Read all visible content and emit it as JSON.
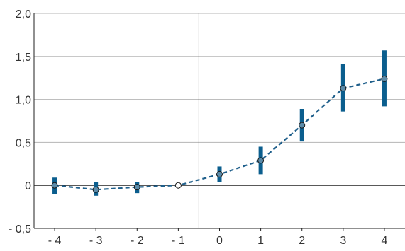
{
  "chart_data": {
    "type": "line",
    "title": "",
    "xlabel": "",
    "ylabel": "",
    "x_ticks": [
      "- 4",
      "- 3",
      "- 2",
      "- 1",
      "0",
      "1",
      "2",
      "3",
      "4"
    ],
    "x": [
      -4,
      -3,
      -2,
      -1,
      0,
      1,
      2,
      3,
      4
    ],
    "y_ticks": [
      "2,0",
      "1,5",
      "1,0",
      "0,5",
      "0",
      "- 0,5"
    ],
    "y_tick_values": [
      2.0,
      1.5,
      1.0,
      0.5,
      0,
      -0.5
    ],
    "ylim": [
      -0.5,
      2.0
    ],
    "grid": "horizontal",
    "reference_line_x": -0.5,
    "series": [
      {
        "values": [
          0.0,
          -0.05,
          -0.02,
          0.0,
          0.13,
          0.29,
          0.7,
          1.13,
          1.24
        ],
        "ci_low": [
          -0.1,
          -0.12,
          -0.09,
          0.0,
          0.04,
          0.13,
          0.51,
          0.86,
          0.92
        ],
        "ci_high": [
          0.09,
          0.04,
          0.04,
          0.0,
          0.22,
          0.45,
          0.89,
          1.41,
          1.57
        ]
      }
    ],
    "colors": {
      "line": "#1f5f8b",
      "error_bar": "#0b5e8e",
      "marker_fill": "#5b8ba9",
      "marker_stroke": "#1a1a1a",
      "grid": "#b5b5b5",
      "axis": "#222222"
    }
  }
}
